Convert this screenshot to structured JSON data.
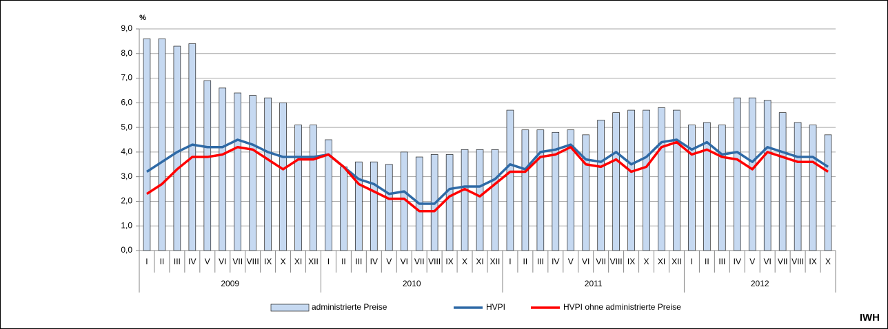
{
  "chart_data": {
    "type": "bar_line",
    "y_label": "%",
    "watermark": "IWH",
    "groups": [
      {
        "name": "2009",
        "categories": [
          "I",
          "II",
          "III",
          "IV",
          "V",
          "VI",
          "VII",
          "VIII",
          "IX",
          "X",
          "XI",
          "XII"
        ]
      },
      {
        "name": "2010",
        "categories": [
          "I",
          "II",
          "III",
          "IV",
          "V",
          "VI",
          "VII",
          "VIII",
          "IX",
          "X",
          "XI",
          "XII"
        ]
      },
      {
        "name": "2011",
        "categories": [
          "I",
          "II",
          "III",
          "IV",
          "V",
          "VI",
          "VII",
          "VIII",
          "IX",
          "X",
          "XI",
          "XII"
        ]
      },
      {
        "name": "2012",
        "categories": [
          "I",
          "II",
          "III",
          "IV",
          "V",
          "VI",
          "VII",
          "VIII",
          "IX",
          "X"
        ]
      }
    ],
    "series": [
      {
        "name": "administrierte Preise",
        "kind": "bar",
        "color": "#c6d9f1",
        "values": [
          8.6,
          8.6,
          8.3,
          8.4,
          6.9,
          6.6,
          6.4,
          6.3,
          6.2,
          6.0,
          5.1,
          5.1,
          4.5,
          3.4,
          3.6,
          3.6,
          3.5,
          4.0,
          3.8,
          3.9,
          3.9,
          4.1,
          4.1,
          4.1,
          5.7,
          4.9,
          4.9,
          4.8,
          4.9,
          4.7,
          5.3,
          5.6,
          5.7,
          5.7,
          5.8,
          5.7,
          5.1,
          5.2,
          5.1,
          6.2,
          6.2,
          6.1,
          5.6,
          5.2,
          5.1,
          4.7
        ]
      },
      {
        "name": "HVPI",
        "kind": "line",
        "color": "#2f6aa6",
        "values": [
          3.2,
          3.6,
          4.0,
          4.3,
          4.2,
          4.2,
          4.5,
          4.3,
          4.0,
          3.8,
          3.8,
          3.8,
          3.9,
          3.4,
          2.9,
          2.7,
          2.3,
          2.4,
          1.9,
          1.9,
          2.5,
          2.6,
          2.6,
          2.9,
          3.5,
          3.3,
          4.0,
          4.1,
          4.3,
          3.7,
          3.6,
          4.0,
          3.5,
          3.8,
          4.4,
          4.5,
          4.1,
          4.4,
          3.9,
          4.0,
          3.6,
          4.2,
          4.0,
          3.8,
          3.8,
          3.4
        ]
      },
      {
        "name": "HVPI ohne administrierte Preise",
        "kind": "line",
        "color": "#ff0000",
        "values": [
          2.3,
          2.7,
          3.3,
          3.8,
          3.8,
          3.9,
          4.2,
          4.1,
          3.7,
          3.3,
          3.7,
          3.7,
          3.9,
          3.4,
          2.7,
          2.4,
          2.1,
          2.1,
          1.6,
          1.6,
          2.2,
          2.5,
          2.2,
          2.7,
          3.2,
          3.2,
          3.8,
          3.9,
          4.2,
          3.5,
          3.4,
          3.7,
          3.2,
          3.4,
          4.2,
          4.4,
          3.9,
          4.1,
          3.8,
          3.7,
          3.3,
          4.0,
          3.8,
          3.6,
          3.6,
          3.2
        ]
      }
    ],
    "ylim": [
      0,
      9
    ],
    "yticks": [
      {
        "value": 0,
        "label": "0,0"
      },
      {
        "value": 1,
        "label": "1,0"
      },
      {
        "value": 2,
        "label": "2,0"
      },
      {
        "value": 3,
        "label": "3,0"
      },
      {
        "value": 4,
        "label": "4,0"
      },
      {
        "value": 5,
        "label": "5,0"
      },
      {
        "value": 6,
        "label": "6,0"
      },
      {
        "value": 7,
        "label": "7,0"
      },
      {
        "value": 8,
        "label": "8,0"
      },
      {
        "value": 9,
        "label": "9,0"
      }
    ],
    "grid": true,
    "legend": "bottom"
  }
}
